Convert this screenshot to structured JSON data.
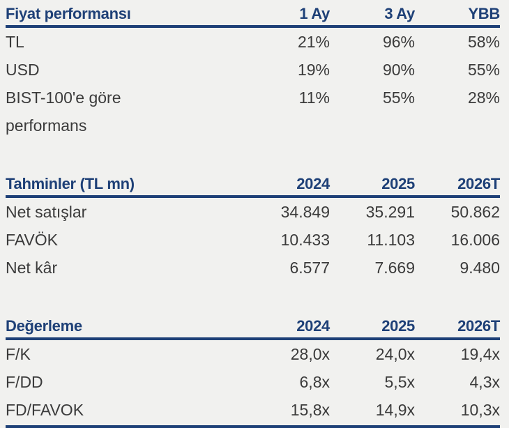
{
  "colors": {
    "accent": "#1e4077",
    "body_text": "#3b3b3b",
    "background": "#f1f1ef"
  },
  "sections": [
    {
      "title": "Fiyat performansı",
      "columns": [
        "1 Ay",
        "3 Ay",
        "YBB"
      ],
      "rows": [
        {
          "label": "TL",
          "values": [
            "21%",
            "96%",
            "58%"
          ]
        },
        {
          "label": "USD",
          "values": [
            "19%",
            "90%",
            "55%"
          ]
        },
        {
          "label": "BIST-100'e göre performans",
          "values": [
            "11%",
            "55%",
            "28%"
          ]
        }
      ]
    },
    {
      "title": "Tahminler (TL mn)",
      "columns": [
        "2024",
        "2025",
        "2026T"
      ],
      "rows": [
        {
          "label": "Net satışlar",
          "values": [
            "34.849",
            "35.291",
            "50.862"
          ]
        },
        {
          "label": "FAVÖK",
          "values": [
            "10.433",
            "11.103",
            "16.006"
          ]
        },
        {
          "label": "Net kâr",
          "values": [
            "6.577",
            "7.669",
            "9.480"
          ]
        }
      ]
    },
    {
      "title": "Değerleme",
      "columns": [
        "2024",
        "2025",
        "2026T"
      ],
      "rows": [
        {
          "label": "F/K",
          "values": [
            "28,0x",
            "24,0x",
            "19,4x"
          ]
        },
        {
          "label": "F/DD",
          "values": [
            "6,8x",
            "5,5x",
            "4,3x"
          ]
        },
        {
          "label": "FD/FAVOK",
          "values": [
            "15,8x",
            "14,9x",
            "10,3x"
          ]
        }
      ]
    }
  ]
}
